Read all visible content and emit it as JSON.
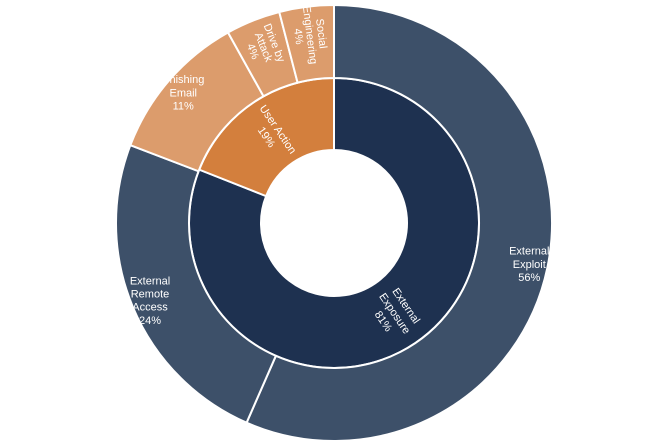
{
  "chart_data": {
    "type": "sunburst",
    "title": "",
    "inner": [
      {
        "lines": [
          "External",
          "Exposure",
          "81%"
        ],
        "value": 81,
        "color": "#1e3150"
      },
      {
        "lines": [
          "User Action",
          "19%"
        ],
        "value": 19,
        "color": "#d37f3d"
      }
    ],
    "outer": [
      {
        "lines": [
          "External",
          "Exploit",
          "56%"
        ],
        "value": 56,
        "color": "#3d5069",
        "parent": 0
      },
      {
        "lines": [
          "External",
          "Remote",
          "Access",
          "24%"
        ],
        "value": 24,
        "color": "#3d5069",
        "parent": 0
      },
      {
        "lines": [
          "Phishing",
          "Email",
          "11%"
        ],
        "value": 11,
        "color": "#dc9c6c",
        "parent": 1
      },
      {
        "lines": [
          "Drive by",
          "Attack",
          "4%"
        ],
        "value": 4,
        "color": "#dc9c6c",
        "parent": 1
      },
      {
        "lines": [
          "Social",
          "Engineering",
          "4%"
        ],
        "value": 4,
        "color": "#dc9c6c",
        "parent": 1
      }
    ]
  }
}
